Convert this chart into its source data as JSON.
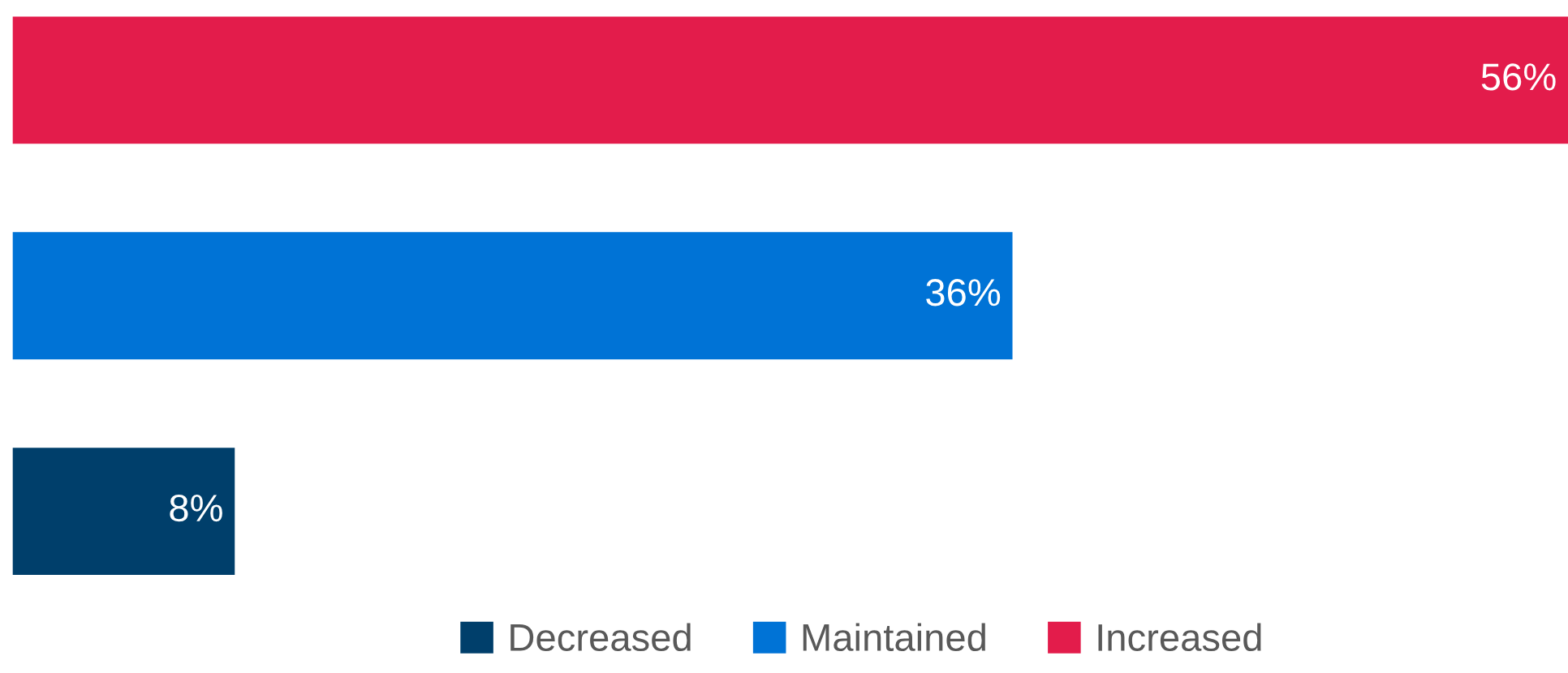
{
  "chart_data": {
    "type": "bar",
    "orientation": "horizontal",
    "stacked": true,
    "categories": [
      null,
      null,
      null
    ],
    "series": [
      {
        "name": "Decreased",
        "color": "#003f6b",
        "values": [
          null,
          null,
          8
        ],
        "value_labels": [
          null,
          null,
          "8%"
        ]
      },
      {
        "name": "Maintained",
        "color": "#0073d6",
        "values": [
          null,
          36,
          null
        ],
        "value_labels": [
          null,
          "36%",
          null
        ]
      },
      {
        "name": "Increased",
        "color": "#e31c4b",
        "values": [
          56,
          null,
          null
        ],
        "value_labels": [
          "56%",
          null,
          null
        ]
      }
    ],
    "legend": "bottom",
    "grid": false,
    "tick_labels": false
  }
}
